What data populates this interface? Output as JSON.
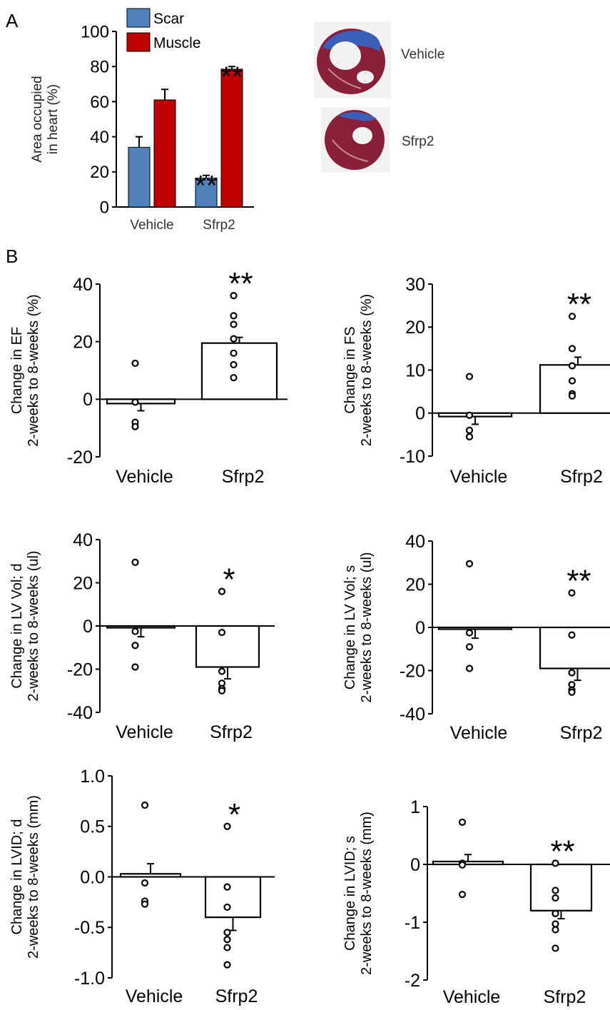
{
  "panel_labels": {
    "a": "A",
    "b": "B"
  },
  "histology": {
    "label_vehicle": "Vehicle",
    "label_sfrp2": "Sfrp2"
  },
  "chart_data": [
    {
      "id": "A",
      "type": "bar",
      "ylabel": "Area occupied\nin heart (%)",
      "ylim": [
        0,
        100
      ],
      "yticks": [
        "0",
        "20",
        "40",
        "60",
        "80",
        "100"
      ],
      "categories": [
        "Vehicle",
        "Sfrp2"
      ],
      "series": [
        {
          "name": "Scar",
          "color": "#4f81bd",
          "values": [
            34,
            16.5
          ],
          "errors": [
            6,
            1.5
          ],
          "significance": [
            "",
            "**"
          ]
        },
        {
          "name": "Muscle",
          "color": "#c00000",
          "values": [
            61,
            78.5
          ],
          "errors": [
            6,
            1.5
          ],
          "significance": [
            "",
            "**"
          ]
        }
      ],
      "legend": "top-left"
    },
    {
      "id": "EF",
      "type": "bar",
      "ylabel": "Change in EF\n2-weeks to 8-weeks (%)",
      "ylim": [
        -20,
        40
      ],
      "yticks": [
        "-20",
        "0",
        "20",
        "40"
      ],
      "categories": [
        "Vehicle",
        "Sfrp2"
      ],
      "values": [
        -1.5,
        19.5
      ],
      "errors": [
        2.5,
        2.0
      ],
      "points": [
        [
          12.5,
          -1,
          -8,
          -9.5
        ],
        [
          36,
          29,
          26,
          21,
          16,
          12,
          7.5
        ]
      ],
      "significance": [
        "",
        "**"
      ]
    },
    {
      "id": "FS",
      "type": "bar",
      "ylabel": "Change in FS\n2-weeks to 8-weeks (%)",
      "ylim": [
        -10,
        30
      ],
      "yticks": [
        "-10",
        "0",
        "10",
        "20",
        "30"
      ],
      "categories": [
        "Vehicle",
        "Sfrp2"
      ],
      "values": [
        -0.8,
        11.2
      ],
      "errors": [
        1.8,
        1.8
      ],
      "points": [
        [
          8.5,
          -0.5,
          -4,
          -5.5
        ],
        [
          22.5,
          15,
          11,
          7.5,
          4.5,
          4
        ]
      ],
      "significance": [
        "",
        "**"
      ]
    },
    {
      "id": "LVVold",
      "type": "bar",
      "ylabel": "Change in LV Vol; d\n2-weeks to 8-weeks (ul)",
      "ylim": [
        -40,
        40
      ],
      "yticks": [
        "-40",
        "-20",
        "0",
        "20",
        "40"
      ],
      "categories": [
        "Vehicle",
        "Sfrp2"
      ],
      "values": [
        -0.5,
        -19
      ],
      "errors": [
        4.5,
        5.5
      ],
      "points": [
        [
          29.5,
          -2.5,
          -9,
          -19
        ],
        [
          16,
          -3,
          -21,
          -26.5,
          -29,
          -30
        ]
      ],
      "significance": [
        "",
        "*"
      ]
    },
    {
      "id": "LVVols",
      "type": "bar",
      "ylabel": "Change in LV Vol; s\n2-weeks to 8-weeks (ul)",
      "ylim": [
        -40,
        40
      ],
      "yticks": [
        "-40",
        "-20",
        "0",
        "20",
        "40"
      ],
      "categories": [
        "Vehicle",
        "Sfrp2"
      ],
      "values": [
        -0.5,
        -19
      ],
      "errors": [
        4.5,
        5.5
      ],
      "points": [
        [
          29.5,
          -2.5,
          -9,
          -19
        ],
        [
          16,
          -3.5,
          -21,
          -26.5,
          -29,
          -30
        ]
      ],
      "significance": [
        "",
        "**"
      ]
    },
    {
      "id": "LVIDd",
      "type": "bar",
      "ylabel": "Change in LVID; d\n2-weeks to 8-weeks (mm)",
      "ylim": [
        -1.0,
        1.0
      ],
      "yticks": [
        "-1.0",
        "-0.5",
        "0.0",
        "0.5",
        "1.0"
      ],
      "categories": [
        "Vehicle",
        "Sfrp2"
      ],
      "values": [
        0.03,
        -0.4
      ],
      "errors": [
        0.1,
        0.13
      ],
      "points": [
        [
          0.71,
          -0.06,
          -0.24,
          -0.27
        ],
        [
          0.5,
          -0.1,
          -0.3,
          -0.55,
          -0.62,
          -0.7,
          -0.87
        ]
      ],
      "significance": [
        "",
        "*"
      ]
    },
    {
      "id": "LVIDs",
      "type": "bar",
      "ylabel": "Change in LVID; s\n2-weeks to 8-weeks (mm)",
      "ylim": [
        -2,
        1
      ],
      "yticks": [
        "-2",
        "-1",
        "0",
        "1"
      ],
      "categories": [
        "Vehicle",
        "Sfrp2"
      ],
      "values": [
        0.05,
        -0.8
      ],
      "errors": [
        0.12,
        0.14
      ],
      "points": [
        [
          0.73,
          0.02,
          -0.01,
          -0.52
        ],
        [
          0.02,
          -0.45,
          -0.58,
          -0.85,
          -1.03,
          -1.13,
          -1.45
        ]
      ],
      "significance": [
        "",
        "**"
      ]
    }
  ]
}
